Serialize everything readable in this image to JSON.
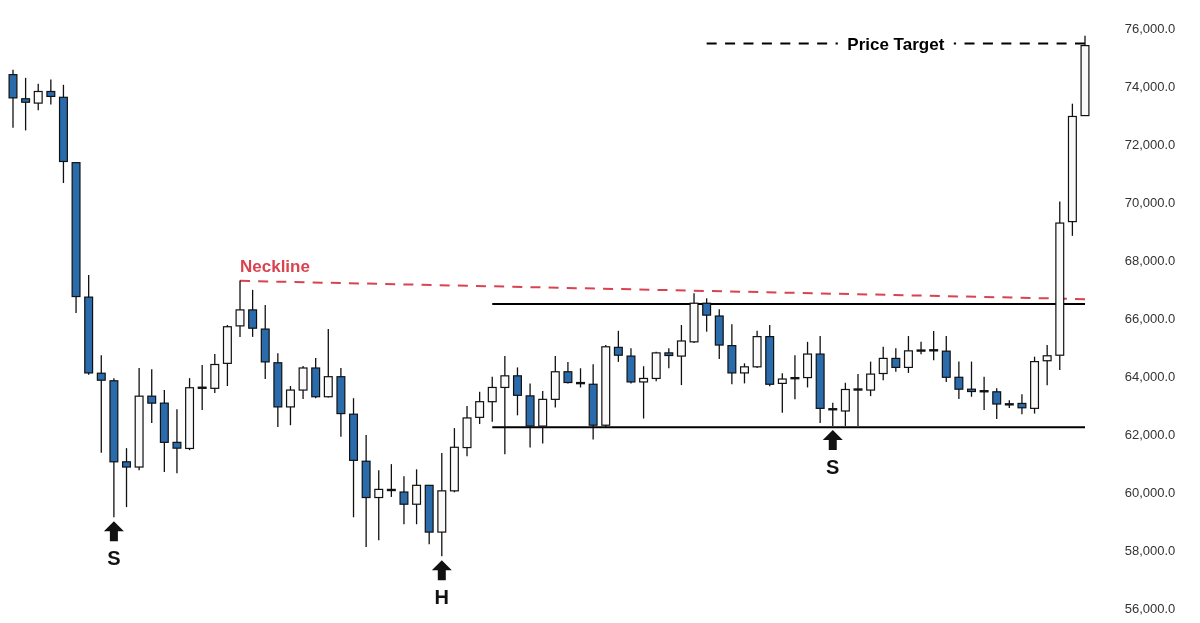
{
  "chart_data": {
    "type": "candlestick",
    "categories": [
      null,
      null,
      null,
      null,
      null,
      null,
      null,
      null,
      null,
      null,
      null,
      null,
      null,
      null,
      null,
      null,
      null,
      null,
      null,
      null,
      null,
      null,
      null,
      null,
      null,
      null,
      null,
      null,
      null,
      null,
      null,
      null,
      null,
      null,
      null,
      null,
      null,
      null,
      null,
      null,
      null,
      null,
      null,
      null,
      null,
      null,
      null,
      null,
      null,
      null,
      null,
      null,
      null,
      null,
      null,
      null,
      null,
      null,
      null,
      null,
      null,
      null,
      null,
      null,
      null,
      null,
      null,
      null,
      null,
      null,
      null,
      null,
      null,
      null,
      null,
      null,
      null,
      null,
      null,
      null,
      null,
      null,
      null,
      null,
      null,
      null
    ],
    "ohlc": [
      [
        74380,
        74550,
        72550,
        73580
      ],
      [
        73550,
        74270,
        72460,
        73430
      ],
      [
        73400,
        74070,
        73150,
        73800
      ],
      [
        73800,
        74210,
        73350,
        73630
      ],
      [
        73600,
        74030,
        70650,
        71390
      ],
      [
        71350,
        71350,
        66170,
        66740
      ],
      [
        66720,
        67480,
        64050,
        64110
      ],
      [
        64100,
        64720,
        61360,
        63860
      ],
      [
        63840,
        63930,
        59140,
        61050
      ],
      [
        61050,
        61520,
        59490,
        60870
      ],
      [
        60870,
        64280,
        60760,
        63310
      ],
      [
        63310,
        64240,
        62390,
        63070
      ],
      [
        63070,
        63520,
        60700,
        61720
      ],
      [
        61720,
        62860,
        60660,
        61520
      ],
      [
        61510,
        63930,
        61450,
        63600
      ],
      [
        63600,
        64380,
        62830,
        63620
      ],
      [
        63580,
        64760,
        63420,
        64400
      ],
      [
        64440,
        65760,
        63660,
        65700
      ],
      [
        65730,
        67290,
        65350,
        66280
      ],
      [
        66280,
        66970,
        65350,
        65650
      ],
      [
        65620,
        66450,
        63900,
        64490
      ],
      [
        64460,
        64790,
        62250,
        62940
      ],
      [
        62940,
        63660,
        62310,
        63520
      ],
      [
        63520,
        64350,
        63210,
        64280
      ],
      [
        64280,
        64620,
        63240,
        63290
      ],
      [
        63290,
        65620,
        63260,
        63980
      ],
      [
        63980,
        64280,
        61910,
        62710
      ],
      [
        62690,
        63240,
        59140,
        61100
      ],
      [
        61070,
        61970,
        58120,
        59820
      ],
      [
        59820,
        60760,
        58350,
        60100
      ],
      [
        60060,
        60970,
        59840,
        60100
      ],
      [
        60010,
        60550,
        58900,
        59590
      ],
      [
        59590,
        60790,
        58900,
        60240
      ],
      [
        60240,
        60240,
        58210,
        58630
      ],
      [
        58630,
        61350,
        57800,
        60050
      ],
      [
        60050,
        62210,
        60000,
        61550
      ],
      [
        61540,
        62970,
        61240,
        62560
      ],
      [
        62580,
        63460,
        62350,
        63120
      ],
      [
        63120,
        63980,
        62430,
        63610
      ],
      [
        63610,
        64690,
        61310,
        64010
      ],
      [
        64010,
        64300,
        62650,
        63340
      ],
      [
        63320,
        63750,
        61540,
        62280
      ],
      [
        62280,
        63490,
        61680,
        63200
      ],
      [
        63200,
        64690,
        62920,
        64150
      ],
      [
        64150,
        64490,
        63750,
        63780
      ],
      [
        63760,
        64270,
        63610,
        63780
      ],
      [
        63720,
        64410,
        61820,
        62310
      ],
      [
        62310,
        65070,
        62250,
        65010
      ],
      [
        64990,
        65560,
        64490,
        64720
      ],
      [
        64690,
        64960,
        63750,
        63800
      ],
      [
        63800,
        64340,
        62540,
        63920
      ],
      [
        63920,
        64840,
        63820,
        64800
      ],
      [
        64800,
        64960,
        64270,
        64710
      ],
      [
        64690,
        65760,
        63690,
        65210
      ],
      [
        65180,
        66850,
        65140,
        66510
      ],
      [
        66510,
        66680,
        65530,
        66100
      ],
      [
        66070,
        66300,
        64590,
        65070
      ],
      [
        65050,
        65790,
        63720,
        64110
      ],
      [
        64110,
        64440,
        63750,
        64320
      ],
      [
        64320,
        65560,
        64280,
        65360
      ],
      [
        65360,
        65760,
        63650,
        63720
      ],
      [
        63750,
        64100,
        62740,
        63900
      ],
      [
        63930,
        64720,
        63200,
        63950
      ],
      [
        63950,
        65180,
        63610,
        64760
      ],
      [
        64760,
        65380,
        62390,
        62890
      ],
      [
        62850,
        63080,
        62280,
        62880
      ],
      [
        62800,
        63770,
        62280,
        63540
      ],
      [
        63540,
        64070,
        62280,
        63560
      ],
      [
        63520,
        64500,
        63310,
        64070
      ],
      [
        64090,
        65010,
        63860,
        64610
      ],
      [
        64610,
        64960,
        64150,
        64300
      ],
      [
        64300,
        65380,
        64110,
        64870
      ],
      [
        64890,
        65180,
        64750,
        64900
      ],
      [
        64900,
        65550,
        64550,
        64910
      ],
      [
        64860,
        65380,
        63800,
        63960
      ],
      [
        63960,
        64500,
        63210,
        63550
      ],
      [
        63550,
        64500,
        63290,
        63470
      ],
      [
        63490,
        63980,
        62830,
        63500
      ],
      [
        63460,
        63580,
        62520,
        63040
      ],
      [
        63040,
        63170,
        62900,
        63050
      ],
      [
        63060,
        63380,
        62690,
        62910
      ],
      [
        62890,
        64670,
        62710,
        64500
      ],
      [
        64530,
        65070,
        63690,
        64700
      ],
      [
        64720,
        70010,
        64210,
        69270
      ],
      [
        69320,
        73380,
        68830,
        72940
      ],
      [
        72970,
        75720,
        72970,
        75380
      ]
    ],
    "colors": [
      "#2a6bab",
      "#2a6bab",
      "#ffffff",
      "#2a6bab",
      "#2a6bab",
      "#2a6bab",
      "#2a6bab",
      "#2a6bab",
      "#2a6bab",
      "#2a6bab",
      "#ffffff",
      "#2a6bab",
      "#2a6bab",
      "#2a6bab",
      "#ffffff",
      "#ffffff",
      "#ffffff",
      "#ffffff",
      "#ffffff",
      "#2a6bab",
      "#2a6bab",
      "#2a6bab",
      "#ffffff",
      "#ffffff",
      "#2a6bab",
      "#ffffff",
      "#2a6bab",
      "#2a6bab",
      "#2a6bab",
      "#ffffff",
      "#ffffff",
      "#2a6bab",
      "#ffffff",
      "#2a6bab",
      "#ffffff",
      "#ffffff",
      "#ffffff",
      "#ffffff",
      "#ffffff",
      "#ffffff",
      "#2a6bab",
      "#2a6bab",
      "#ffffff",
      "#ffffff",
      "#2a6bab",
      "#ffffff",
      "#2a6bab",
      "#ffffff",
      "#2a6bab",
      "#2a6bab",
      "#ffffff",
      "#ffffff",
      "#2a6bab",
      "#ffffff",
      "#ffffff",
      "#2a6bab",
      "#2a6bab",
      "#2a6bab",
      "#ffffff",
      "#ffffff",
      "#2a6bab",
      "#ffffff",
      "#ffffff",
      "#ffffff",
      "#2a6bab",
      "#ffffff",
      "#ffffff",
      "#ffffff",
      "#ffffff",
      "#ffffff",
      "#2a6bab",
      "#ffffff",
      "#ffffff",
      "#ffffff",
      "#2a6bab",
      "#2a6bab",
      "#2a6bab",
      "#ffffff",
      "#2a6bab",
      "#ffffff",
      "#2a6bab",
      "#ffffff",
      "#ffffff",
      "#ffffff",
      "#ffffff",
      "#ffffff"
    ],
    "series": [
      {
        "type": "line",
        "name": "Neckline",
        "color": "#d9434f",
        "line_style": "dashed",
        "values": [
          null,
          null,
          null,
          null,
          null,
          null,
          null,
          null,
          null,
          null,
          null,
          null,
          null,
          null,
          null,
          null,
          null,
          null,
          67280,
          null,
          null,
          null,
          null,
          null,
          null,
          null,
          null,
          null,
          null,
          null,
          null,
          null,
          null,
          null,
          null,
          null,
          null,
          null,
          null,
          null,
          null,
          null,
          null,
          null,
          null,
          null,
          null,
          null,
          null,
          null,
          null,
          null,
          null,
          null,
          null,
          null,
          null,
          null,
          null,
          null,
          null,
          null,
          null,
          null,
          null,
          null,
          null,
          null,
          null,
          null,
          null,
          null,
          null,
          null,
          null,
          null,
          null,
          null,
          null,
          null,
          null,
          null,
          null,
          null,
          null,
          66650
        ]
      },
      {
        "type": "line",
        "color": "#000000",
        "line_style": "solid",
        "values": [
          null,
          null,
          null,
          null,
          null,
          null,
          null,
          null,
          null,
          null,
          null,
          null,
          null,
          null,
          null,
          null,
          null,
          null,
          null,
          null,
          null,
          null,
          null,
          null,
          null,
          null,
          null,
          null,
          null,
          null,
          null,
          null,
          null,
          null,
          null,
          null,
          null,
          null,
          66480,
          null,
          null,
          null,
          null,
          null,
          null,
          null,
          null,
          null,
          null,
          null,
          null,
          null,
          null,
          null,
          null,
          null,
          null,
          null,
          null,
          null,
          null,
          null,
          null,
          null,
          null,
          null,
          null,
          null,
          null,
          null,
          null,
          null,
          null,
          null,
          null,
          null,
          null,
          null,
          null,
          null,
          null,
          null,
          null,
          null,
          null,
          66480
        ]
      },
      {
        "type": "line",
        "color": "#000000",
        "line_style": "solid",
        "values": [
          null,
          null,
          null,
          null,
          null,
          null,
          null,
          null,
          null,
          null,
          null,
          null,
          null,
          null,
          null,
          null,
          null,
          null,
          null,
          null,
          null,
          null,
          null,
          null,
          null,
          null,
          null,
          null,
          null,
          null,
          null,
          null,
          null,
          null,
          null,
          null,
          null,
          null,
          62240,
          null,
          null,
          null,
          null,
          null,
          null,
          null,
          null,
          null,
          null,
          null,
          null,
          null,
          null,
          null,
          null,
          null,
          null,
          null,
          null,
          null,
          null,
          null,
          null,
          null,
          null,
          null,
          null,
          null,
          null,
          null,
          null,
          null,
          null,
          null,
          null,
          null,
          null,
          null,
          null,
          null,
          null,
          null,
          null,
          null,
          null,
          62240
        ]
      },
      {
        "type": "line",
        "name": "Price Target",
        "color": "#000000",
        "line_style": "dashed",
        "values": [
          null,
          null,
          null,
          null,
          null,
          null,
          null,
          null,
          null,
          null,
          null,
          null,
          null,
          null,
          null,
          null,
          null,
          null,
          null,
          null,
          null,
          null,
          null,
          null,
          null,
          null,
          null,
          null,
          null,
          null,
          null,
          null,
          null,
          null,
          null,
          null,
          null,
          null,
          null,
          null,
          null,
          null,
          null,
          null,
          null,
          null,
          null,
          null,
          null,
          null,
          null,
          null,
          null,
          null,
          null,
          75450,
          null,
          null,
          null,
          null,
          null,
          null,
          null,
          null,
          null,
          null,
          null,
          null,
          null,
          null,
          null,
          null,
          null,
          null,
          null,
          null,
          null,
          null,
          null,
          null,
          null,
          null,
          null,
          null,
          null,
          75450
        ]
      }
    ],
    "annotations": [
      {
        "text": "S",
        "y": 59140
      },
      {
        "text": "H",
        "y": 57800
      },
      {
        "text": "S",
        "y": 62280
      }
    ],
    "ylim": [
      55500,
      76950
    ],
    "yticks": [
      {
        "value": 56000,
        "label": "56,000.0"
      },
      {
        "value": 58000,
        "label": "58,000.0"
      },
      {
        "value": 60000,
        "label": "60,000.0"
      },
      {
        "value": 62000,
        "label": "62,000.0"
      },
      {
        "value": 64000,
        "label": "64,000.0"
      },
      {
        "value": 66000,
        "label": "66,000.0"
      },
      {
        "value": 68000,
        "label": "68,000.0"
      },
      {
        "value": 70000,
        "label": "70,000.0"
      },
      {
        "value": 72000,
        "label": "72,000.0"
      },
      {
        "value": 74000,
        "label": "74,000.0"
      },
      {
        "value": 76000,
        "label": "76,000.0"
      }
    ],
    "tick_labels": "y"
  }
}
